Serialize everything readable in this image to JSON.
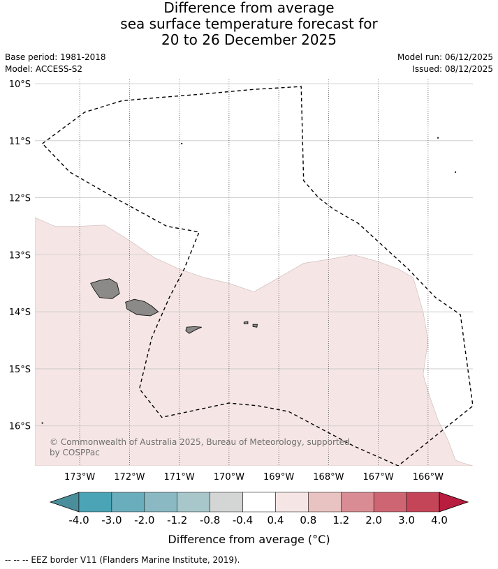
{
  "title": {
    "line1": "Difference from average",
    "line2": "sea surface temperature forecast for",
    "line3": "20 to 26 December 2025"
  },
  "meta": {
    "base_period": "Base period: 1981-2018",
    "model": "Model: ACCESS-S2",
    "model_run": "Model run: 06/12/2025",
    "issued": "Issued: 08/12/2025"
  },
  "map": {
    "lon_ticks": [
      -173,
      -172,
      -171,
      -170,
      -169,
      -168,
      -167,
      -166
    ],
    "lon_labels": [
      "173°W",
      "172°W",
      "171°W",
      "170°W",
      "169°W",
      "168°W",
      "167°W",
      "166°W"
    ],
    "lat_ticks": [
      -10,
      -11,
      -12,
      -13,
      -14,
      -15,
      -16
    ],
    "lat_labels": [
      "10°S",
      "11°S",
      "12°S",
      "13°S",
      "14°S",
      "15°S",
      "16°S"
    ],
    "extent": {
      "lon_min": -173.9,
      "lon_max": -165.1,
      "lat_min": -16.7,
      "lat_max": -10.0
    },
    "anomaly_fill_color": "#f5e6e5",
    "anomaly_region": [
      [
        -173.9,
        -12.35
      ],
      [
        -173.5,
        -12.5
      ],
      [
        -173.0,
        -12.5
      ],
      [
        -172.5,
        -12.48
      ],
      [
        -172.0,
        -12.75
      ],
      [
        -171.5,
        -13.05
      ],
      [
        -171.0,
        -13.25
      ],
      [
        -170.5,
        -13.4
      ],
      [
        -170.0,
        -13.5
      ],
      [
        -169.5,
        -13.65
      ],
      [
        -169.0,
        -13.4
      ],
      [
        -168.5,
        -13.15
      ],
      [
        -168.0,
        -13.08
      ],
      [
        -167.5,
        -13.0
      ],
      [
        -167.0,
        -13.12
      ],
      [
        -166.6,
        -13.25
      ],
      [
        -166.3,
        -13.4
      ],
      [
        -166.1,
        -14.0
      ],
      [
        -166.0,
        -14.5
      ],
      [
        -166.1,
        -15.1
      ],
      [
        -166.0,
        -15.4
      ],
      [
        -165.8,
        -15.9
      ],
      [
        -165.6,
        -16.25
      ],
      [
        -165.45,
        -16.6
      ],
      [
        -165.3,
        -16.65
      ],
      [
        -165.1,
        -16.7
      ],
      [
        -173.9,
        -16.7
      ]
    ],
    "eez_border": [
      [
        -173.75,
        -11.05
      ],
      [
        -172.9,
        -10.5
      ],
      [
        -172.15,
        -10.3
      ],
      [
        -171.5,
        -10.25
      ],
      [
        -170.5,
        -10.18
      ],
      [
        -169.5,
        -10.1
      ],
      [
        -168.55,
        -10.05
      ],
      [
        -168.5,
        -11.7
      ],
      [
        -168.2,
        -12.0
      ],
      [
        -167.9,
        -12.2
      ],
      [
        -167.4,
        -12.45
      ],
      [
        -166.9,
        -12.85
      ],
      [
        -166.4,
        -13.25
      ],
      [
        -165.85,
        -13.75
      ],
      [
        -165.35,
        -14.05
      ],
      [
        -165.1,
        -15.65
      ],
      [
        -166.6,
        -16.7
      ],
      [
        -167.5,
        -16.35
      ],
      [
        -168.8,
        -15.75
      ],
      [
        -169.4,
        -15.65
      ],
      [
        -170.0,
        -15.6
      ],
      [
        -171.35,
        -15.85
      ],
      [
        -171.8,
        -15.35
      ],
      [
        -171.55,
        -14.45
      ],
      [
        -171.2,
        -13.75
      ],
      [
        -170.9,
        -13.25
      ],
      [
        -170.6,
        -12.6
      ],
      [
        -171.25,
        -12.5
      ],
      [
        -172.3,
        -12.0
      ],
      [
        -173.2,
        -11.55
      ],
      [
        -173.75,
        -11.05
      ]
    ],
    "land_fill_color": "#8c8989",
    "islands": [
      [
        [
          -172.78,
          -13.5
        ],
        [
          -172.6,
          -13.45
        ],
        [
          -172.4,
          -13.42
        ],
        [
          -172.25,
          -13.5
        ],
        [
          -172.2,
          -13.68
        ],
        [
          -172.35,
          -13.77
        ],
        [
          -172.6,
          -13.75
        ],
        [
          -172.72,
          -13.6
        ]
      ],
      [
        [
          -172.08,
          -13.83
        ],
        [
          -171.9,
          -13.78
        ],
        [
          -171.7,
          -13.82
        ],
        [
          -171.55,
          -13.9
        ],
        [
          -171.42,
          -14.0
        ],
        [
          -171.58,
          -14.07
        ],
        [
          -171.85,
          -14.05
        ],
        [
          -172.05,
          -13.95
        ]
      ],
      [
        [
          -170.85,
          -14.27
        ],
        [
          -170.7,
          -14.26
        ],
        [
          -170.55,
          -14.27
        ],
        [
          -170.68,
          -14.32
        ],
        [
          -170.8,
          -14.38
        ],
        [
          -170.87,
          -14.33
        ]
      ],
      [
        [
          -169.7,
          -14.18
        ],
        [
          -169.62,
          -14.17
        ],
        [
          -169.62,
          -14.21
        ],
        [
          -169.7,
          -14.21
        ]
      ],
      [
        [
          -169.52,
          -14.22
        ],
        [
          -169.43,
          -14.22
        ],
        [
          -169.44,
          -14.27
        ],
        [
          -169.52,
          -14.26
        ]
      ]
    ],
    "copyright": "© Commonwealth of Australia 2025, Bureau of Meteorology, supported",
    "copyright2": "by COSPPac"
  },
  "colorbar": {
    "colors": [
      "#4a8e9c",
      "#4aa4b5",
      "#6aadbd",
      "#8ab9c4",
      "#a8c7cb",
      "#d3d6d5",
      "#ffffff",
      "#f5e6e5",
      "#e9c3c1",
      "#d98c93",
      "#ce6573",
      "#c44458",
      "#b81c3e"
    ],
    "tick_labels": [
      "-4.0",
      "-3.0",
      "-2.0",
      "-1.2",
      "-0.8",
      "-0.4",
      "0.4",
      "0.8",
      "1.2",
      "2.0",
      "3.0",
      "4.0"
    ],
    "label": "Difference from average (°C)"
  },
  "footer": "--  --  -- EEZ border V11 (Flanders Marine Institute, 2019)."
}
